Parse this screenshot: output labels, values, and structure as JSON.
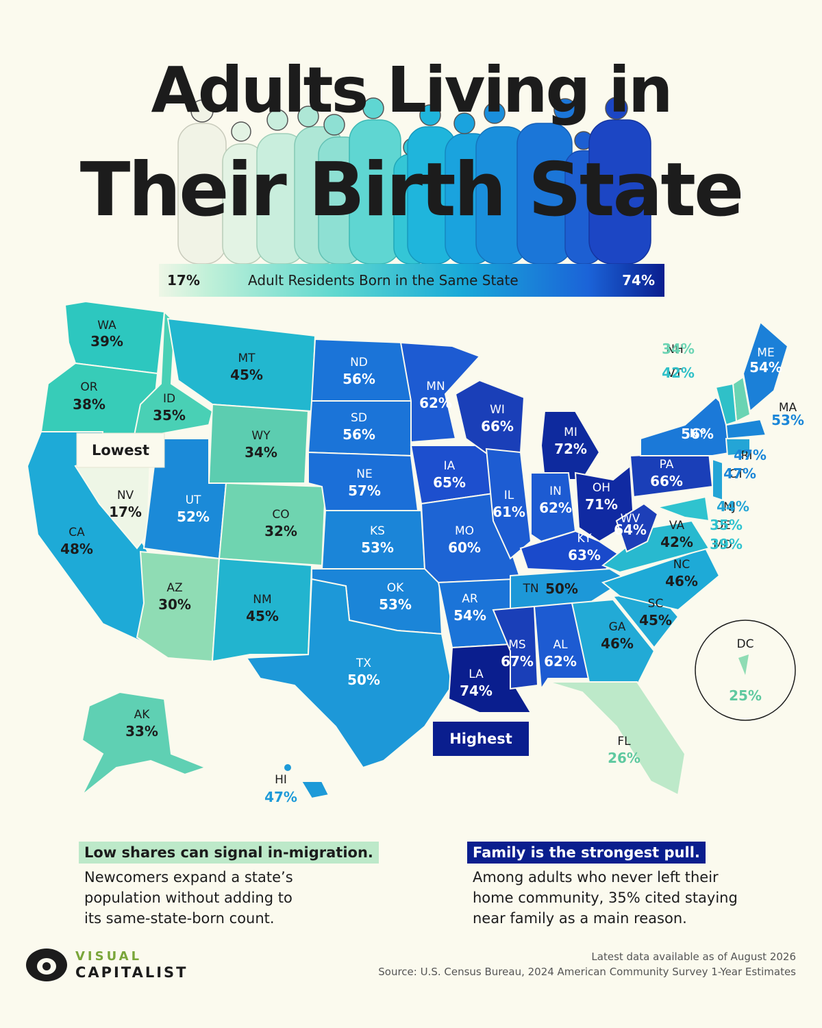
{
  "title": {
    "line1": "Adults Living in",
    "line2": "Their Birth State"
  },
  "legend": {
    "min": "17%",
    "label": "Adult Residents Born in the Same State",
    "max": "74%"
  },
  "colors": {
    "background": "#fbfaee",
    "low": "#eef6e6",
    "high": "#0a1e8e",
    "callout_low": "#bde9c9",
    "callout_high": "#0a1e8e"
  },
  "markers": {
    "lowest": "Lowest",
    "highest": "Highest"
  },
  "states": [
    {
      "abbr": "WA",
      "value": "39%"
    },
    {
      "abbr": "OR",
      "value": "38%"
    },
    {
      "abbr": "CA",
      "value": "48%"
    },
    {
      "abbr": "NV",
      "value": "17%"
    },
    {
      "abbr": "ID",
      "value": "35%"
    },
    {
      "abbr": "MT",
      "value": "45%"
    },
    {
      "abbr": "WY",
      "value": "34%"
    },
    {
      "abbr": "UT",
      "value": "52%"
    },
    {
      "abbr": "CO",
      "value": "32%"
    },
    {
      "abbr": "AZ",
      "value": "30%"
    },
    {
      "abbr": "NM",
      "value": "45%"
    },
    {
      "abbr": "ND",
      "value": "56%"
    },
    {
      "abbr": "SD",
      "value": "56%"
    },
    {
      "abbr": "NE",
      "value": "57%"
    },
    {
      "abbr": "KS",
      "value": "53%"
    },
    {
      "abbr": "OK",
      "value": "53%"
    },
    {
      "abbr": "TX",
      "value": "50%"
    },
    {
      "abbr": "MN",
      "value": "62%"
    },
    {
      "abbr": "IA",
      "value": "65%"
    },
    {
      "abbr": "MO",
      "value": "60%"
    },
    {
      "abbr": "AR",
      "value": "54%"
    },
    {
      "abbr": "LA",
      "value": "74%"
    },
    {
      "abbr": "WI",
      "value": "66%"
    },
    {
      "abbr": "IL",
      "value": "61%"
    },
    {
      "abbr": "MI",
      "value": "72%"
    },
    {
      "abbr": "IN",
      "value": "62%"
    },
    {
      "abbr": "OH",
      "value": "71%"
    },
    {
      "abbr": "KY",
      "value": "63%"
    },
    {
      "abbr": "TN",
      "value": "50%"
    },
    {
      "abbr": "MS",
      "value": "67%"
    },
    {
      "abbr": "AL",
      "value": "62%"
    },
    {
      "abbr": "GA",
      "value": "46%"
    },
    {
      "abbr": "FL",
      "value": "26%"
    },
    {
      "abbr": "SC",
      "value": "45%"
    },
    {
      "abbr": "NC",
      "value": "46%"
    },
    {
      "abbr": "VA",
      "value": "42%"
    },
    {
      "abbr": "WV",
      "value": "64%"
    },
    {
      "abbr": "PA",
      "value": "66%"
    },
    {
      "abbr": "NY",
      "value": "56%"
    },
    {
      "abbr": "ME",
      "value": "54%"
    },
    {
      "abbr": "NH",
      "value": "34%"
    },
    {
      "abbr": "VT",
      "value": "42%"
    },
    {
      "abbr": "MA",
      "value": "53%"
    },
    {
      "abbr": "RI",
      "value": "47%"
    },
    {
      "abbr": "CT",
      "value": "47%"
    },
    {
      "abbr": "NJ",
      "value": "44%"
    },
    {
      "abbr": "DE",
      "value": "35%"
    },
    {
      "abbr": "MD",
      "value": "39%"
    },
    {
      "abbr": "AK",
      "value": "33%"
    },
    {
      "abbr": "HI",
      "value": "47%"
    },
    {
      "abbr": "DC",
      "value": "25%"
    }
  ],
  "callouts": {
    "left": {
      "heading": "Low shares can signal in-migration.",
      "body": [
        "Newcomers expand a state’s",
        "population without adding to",
        "its same-state-born count."
      ]
    },
    "right": {
      "heading": "Family is the strongest pull.",
      "body": [
        "Among adults who never left their",
        "home community, 35% cited staying",
        "near family as a main reason."
      ]
    }
  },
  "footer": {
    "logo_line1": "VISUAL",
    "logo_line2": "CAPITALIST",
    "date_note": "Latest data available as of August 2026",
    "source": "Source: U.S. Census Bureau, 2024 American Community Survey 1-Year Estimates"
  }
}
